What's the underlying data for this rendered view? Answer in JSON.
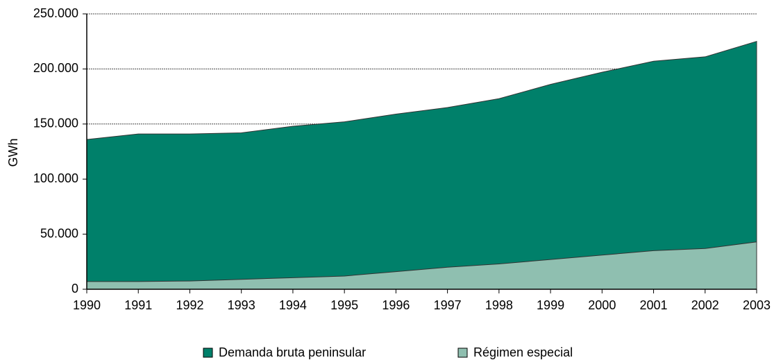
{
  "chart_data": {
    "type": "area",
    "y_label": "GWh",
    "x": [
      1990,
      1991,
      1992,
      1993,
      1994,
      1995,
      1996,
      1997,
      1998,
      1999,
      2000,
      2001,
      2002,
      2003
    ],
    "series": [
      {
        "name": "Demanda bruta peninsular",
        "color": "#00806a",
        "values": [
          136000,
          141000,
          141000,
          142000,
          148000,
          152000,
          159000,
          165000,
          173000,
          186000,
          197000,
          207000,
          211000,
          225000
        ]
      },
      {
        "name": "Régimen especial",
        "color": "#8fbfb0",
        "values": [
          7000,
          7000,
          7500,
          9000,
          10500,
          12000,
          16000,
          20000,
          23000,
          27000,
          31000,
          35000,
          37000,
          43000
        ]
      }
    ],
    "xlim": [
      1990,
      2003
    ],
    "xticks": [
      1990,
      1991,
      1992,
      1993,
      1994,
      1995,
      1996,
      1997,
      1998,
      1999,
      2000,
      2001,
      2002,
      2003
    ],
    "ylim": [
      0,
      250000
    ],
    "yticks": [
      0,
      {
        "value": 50000,
        "label": "50.000"
      },
      {
        "value": 100000,
        "label": "100.000"
      },
      {
        "value": 150000,
        "label": "150.000"
      },
      {
        "value": 200000,
        "label": "200.000"
      },
      {
        "value": 250000,
        "label": "250.000"
      }
    ],
    "grid": true,
    "legend": "bottom"
  }
}
